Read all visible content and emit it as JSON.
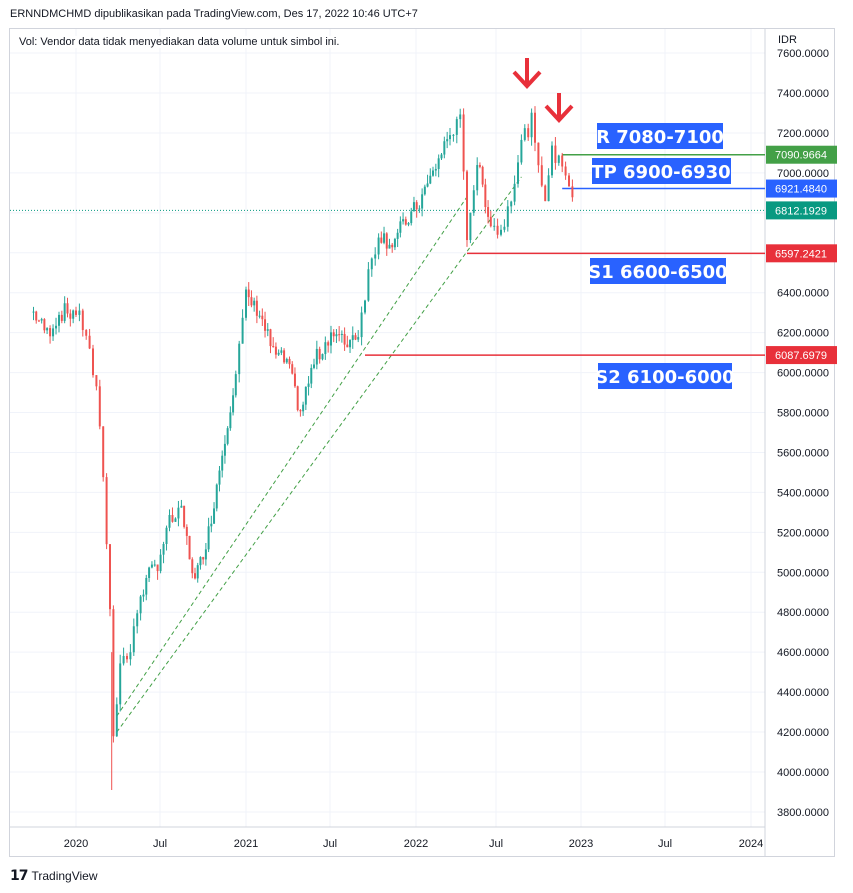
{
  "header": {
    "published_text": "ERNNDMCHMD dipublikasikan pada TradingView.com, Des 17, 2022 10:46 UTC+7",
    "vol_note": "Vol: Vendor data tidak menyediakan data volume untuk simbol ini.",
    "currency": "IDR"
  },
  "footer": {
    "logo_glyph": "17",
    "brand": "TradingView"
  },
  "colors": {
    "up": "#26a69a",
    "down": "#ef5350",
    "support": "#e8303a",
    "resist": "#43a047",
    "tp": "#2962ff",
    "label_bg": "#2962ff",
    "current": "#089981",
    "trend": "#43a047"
  },
  "chart_data": {
    "type": "candlestick",
    "title": "",
    "ylabel": "IDR",
    "ylim": [
      3720,
      7720
    ],
    "grid": true,
    "x_ticks": [
      "2020",
      "Jul",
      "2021",
      "Jul",
      "2022",
      "Jul",
      "2023",
      "Jul",
      "2024"
    ],
    "y_ticks": [
      "7600.0000",
      "7400.0000",
      "7200.0000",
      "7000.0000",
      "6800.0000",
      "6600.0000",
      "6400.0000",
      "6200.0000",
      "6000.0000",
      "5800.0000",
      "5600.0000",
      "5400.0000",
      "5200.0000",
      "5000.0000",
      "4800.0000",
      "4600.0000",
      "4400.0000",
      "4200.0000",
      "4000.0000",
      "3800.0000"
    ],
    "price_labels": [
      {
        "name": "resistance",
        "text": "7090.9664",
        "value": 7090.9664
      },
      {
        "name": "take-profit",
        "text": "6921.4840",
        "value": 6921.484
      },
      {
        "name": "current",
        "text": "6812.1929",
        "value": 6812.1929
      },
      {
        "name": "support-1",
        "text": "6597.2421",
        "value": 6597.2421
      },
      {
        "name": "support-2",
        "text": "6087.6979",
        "value": 6087.6979
      }
    ],
    "annotations": [
      {
        "name": "resistance-zone",
        "text": "R 7080-7100"
      },
      {
        "name": "take-profit-zone",
        "text": "TP 6900-6930"
      },
      {
        "name": "support-1-zone",
        "text": "S1 6600-6500"
      },
      {
        "name": "support-2-zone",
        "text": "S2 6100-6000"
      }
    ],
    "anchors": [
      {
        "date": 2019.75,
        "close": 6300
      },
      {
        "date": 2019.83,
        "close": 6200
      },
      {
        "date": 2019.9,
        "close": 6290
      },
      {
        "date": 2020.0,
        "close": 6310
      },
      {
        "date": 2020.06,
        "close": 6200
      },
      {
        "date": 2020.12,
        "close": 5900
      },
      {
        "date": 2020.16,
        "close": 5500
      },
      {
        "date": 2020.2,
        "close": 4800
      },
      {
        "date": 2020.22,
        "close": 4200
      },
      {
        "date": 2020.26,
        "close": 4550
      },
      {
        "date": 2020.32,
        "close": 4600
      },
      {
        "date": 2020.38,
        "close": 4900
      },
      {
        "date": 2020.48,
        "close": 5050
      },
      {
        "date": 2020.55,
        "close": 5250
      },
      {
        "date": 2020.62,
        "close": 5300
      },
      {
        "date": 2020.7,
        "close": 4950
      },
      {
        "date": 2020.78,
        "close": 5200
      },
      {
        "date": 2020.86,
        "close": 5600
      },
      {
        "date": 2020.94,
        "close": 6000
      },
      {
        "date": 2021.0,
        "close": 6380
      },
      {
        "date": 2021.08,
        "close": 6300
      },
      {
        "date": 2021.16,
        "close": 6100
      },
      {
        "date": 2021.24,
        "close": 6050
      },
      {
        "date": 2021.32,
        "close": 5800
      },
      {
        "date": 2021.4,
        "close": 6050
      },
      {
        "date": 2021.5,
        "close": 6200
      },
      {
        "date": 2021.58,
        "close": 6150
      },
      {
        "date": 2021.66,
        "close": 6200
      },
      {
        "date": 2021.72,
        "close": 6500
      },
      {
        "date": 2021.78,
        "close": 6700
      },
      {
        "date": 2021.86,
        "close": 6650
      },
      {
        "date": 2021.94,
        "close": 6750
      },
      {
        "date": 2022.02,
        "close": 6850
      },
      {
        "date": 2022.1,
        "close": 7000
      },
      {
        "date": 2022.2,
        "close": 7200
      },
      {
        "date": 2022.26,
        "close": 7250
      },
      {
        "date": 2022.3,
        "close": 6700
      },
      {
        "date": 2022.36,
        "close": 7050
      },
      {
        "date": 2022.44,
        "close": 6750
      },
      {
        "date": 2022.5,
        "close": 6700
      },
      {
        "date": 2022.56,
        "close": 6900
      },
      {
        "date": 2022.62,
        "close": 7150
      },
      {
        "date": 2022.68,
        "close": 7250
      },
      {
        "date": 2022.72,
        "close": 7000
      },
      {
        "date": 2022.76,
        "close": 6900
      },
      {
        "date": 2022.8,
        "close": 7100
      },
      {
        "date": 2022.86,
        "close": 7050
      },
      {
        "date": 2022.9,
        "close": 6950
      },
      {
        "date": 2022.94,
        "close": 6800
      }
    ]
  }
}
